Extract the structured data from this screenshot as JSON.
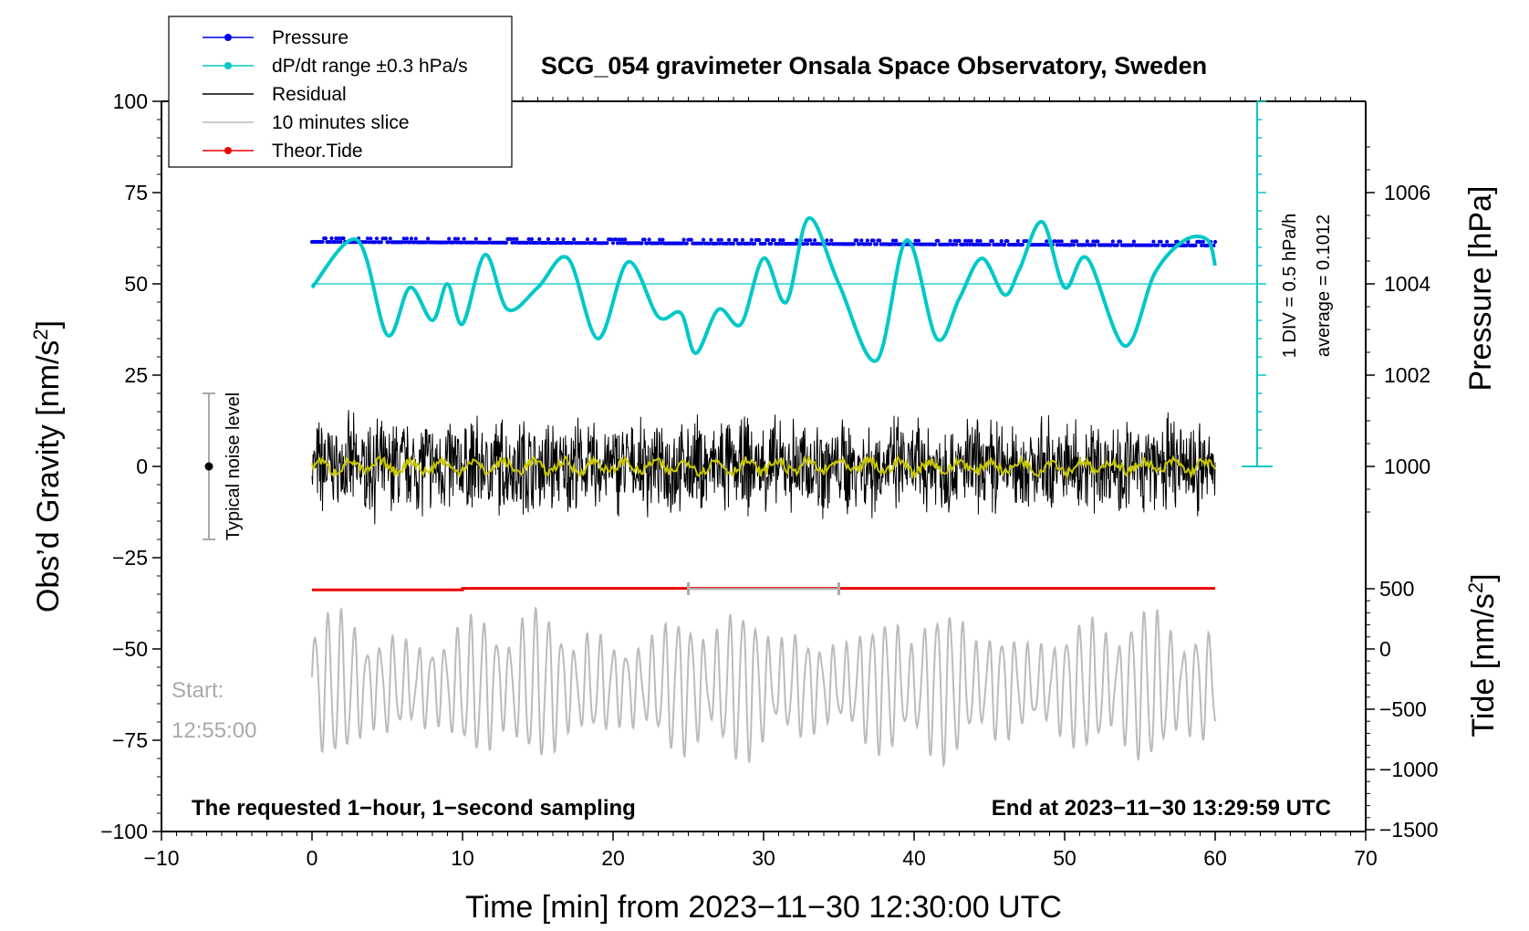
{
  "chart_data": {
    "type": "line",
    "title": "SCG_054 gravimeter Onsala Space Observatory, Sweden",
    "xlabel": "Time [min] from 2023−11−30 12:30:00 UTC",
    "ylabel_left_main": "Obs’d Gravity [nm/s",
    "ylabel_left_sup": "2",
    "ylabel_left_end": "]",
    "ylabel_right_pressure": "Pressure [hPa]",
    "ylabel_right_tide_main": "Tide [nm/s",
    "ylabel_right_tide_sup": "2",
    "ylabel_right_tide_end": "]",
    "xlim": [
      -10,
      70
    ],
    "ylim": [
      -100,
      100
    ],
    "x_ticks": [
      "−10",
      "0",
      "10",
      "20",
      "30",
      "40",
      "50",
      "60",
      "70"
    ],
    "y_ticks": [
      "100",
      "75",
      "50",
      "25",
      "0",
      "−25",
      "−50",
      "−75",
      "−100"
    ],
    "pressure_ticks": [
      "1006",
      "1004",
      "1002",
      "1000"
    ],
    "tide_ticks": [
      "500",
      "0",
      "−500",
      "−1000",
      "−1500"
    ],
    "legend": [
      {
        "label": "Pressure",
        "color": "#0000ee",
        "marker": true
      },
      {
        "label": "dP/dt range ±0.3 hPa/s",
        "color": "#00c8c8",
        "marker": true
      },
      {
        "label": "Residual",
        "color": "#000000",
        "marker": false
      },
      {
        "label": "10 minutes slice",
        "color": "#bbbbbb",
        "marker": false
      },
      {
        "label": "Theor.Tide",
        "color": "#ee0000",
        "marker": true
      }
    ],
    "scale_bar_label_1": "1 DIV = 0.5 hPa/h",
    "scale_bar_label_2": "average = 0.1012",
    "noise_label": "Typical noise level",
    "noise_range": [
      -20,
      20
    ],
    "start_label_1": "Start:",
    "start_label_2": "12:55:00",
    "note_left": "The requested 1−hour, 1−second sampling",
    "note_right": "End at 2023−11−30 13:29:59 UTC",
    "slice_window_min": [
      25,
      35
    ],
    "series": [
      {
        "name": "Pressure",
        "x": [
          0,
          60
        ],
        "values": [
          61.5,
          60.5
        ]
      },
      {
        "name": "dP/dt",
        "x": [
          0,
          3,
          5,
          6.5,
          8,
          9,
          10,
          11.5,
          13,
          15,
          17,
          19,
          21,
          23,
          24.5,
          25.5,
          27,
          28.5,
          30,
          31.5,
          33,
          35,
          37.5,
          39.5,
          41.5,
          43,
          44.5,
          46,
          47,
          48.5,
          50,
          51.5,
          54,
          56,
          58,
          59.5,
          60
        ],
        "values": [
          49,
          62,
          36,
          49,
          40,
          50,
          39,
          58,
          43,
          49,
          57,
          35,
          56,
          41,
          42,
          31,
          43,
          39,
          57,
          45,
          68,
          50,
          29,
          62,
          35,
          46,
          57,
          47,
          54,
          67,
          49,
          57,
          33,
          53,
          62,
          62,
          55
        ]
      },
      {
        "name": "Residual",
        "x": [
          0,
          60
        ],
        "values": [
          0,
          0
        ],
        "amplitude": 15
      },
      {
        "name": "Theor.Tide",
        "x": [
          0,
          10,
          10,
          60
        ],
        "values": [
          -33.8,
          -33.8,
          -33.4,
          -33.4
        ]
      },
      {
        "name": "10 minutes slice",
        "x": [
          0,
          60
        ],
        "values": [
          -60,
          -60
        ],
        "amplitude": 20
      }
    ]
  }
}
